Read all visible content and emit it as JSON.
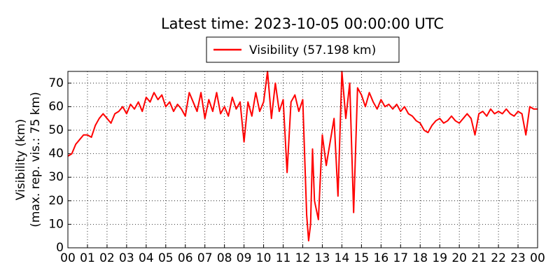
{
  "chart_data": {
    "type": "line",
    "title": "Latest time: 2023-10-05 00:00:00 UTC",
    "y_label": [
      "Visibility (km)",
      "(max. rep. vis.: 75 km)"
    ],
    "x": [
      0,
      0.2,
      0.4,
      0.6,
      0.8,
      1,
      1.2,
      1.4,
      1.6,
      1.8,
      2,
      2.2,
      2.4,
      2.6,
      2.8,
      3,
      3.2,
      3.4,
      3.6,
      3.8,
      4,
      4.2,
      4.4,
      4.6,
      4.8,
      5,
      5.2,
      5.4,
      5.6,
      5.8,
      6,
      6.2,
      6.4,
      6.6,
      6.8,
      7,
      7.2,
      7.4,
      7.6,
      7.8,
      8,
      8.2,
      8.4,
      8.6,
      8.8,
      9,
      9.2,
      9.4,
      9.6,
      9.8,
      10,
      10.2,
      10.4,
      10.6,
      10.8,
      11,
      11.2,
      11.4,
      11.6,
      11.8,
      12,
      12.2,
      12.3,
      12.4,
      12.5,
      12.6,
      12.8,
      13,
      13.2,
      13.4,
      13.6,
      13.8,
      14,
      14.2,
      14.4,
      14.6,
      14.8,
      15,
      15.2,
      15.4,
      15.6,
      15.8,
      16,
      16.2,
      16.4,
      16.6,
      16.8,
      17,
      17.2,
      17.4,
      17.6,
      17.8,
      18,
      18.2,
      18.4,
      18.6,
      18.8,
      19,
      19.2,
      19.4,
      19.6,
      19.8,
      20,
      20.2,
      20.4,
      20.6,
      20.8,
      21,
      21.2,
      21.4,
      21.6,
      21.8,
      22,
      22.2,
      22.4,
      22.6,
      22.8,
      23,
      23.2,
      23.4,
      23.6,
      23.8,
      24
    ],
    "series": [
      {
        "name": "Visibility (57.198 km)",
        "color": "#ff0000",
        "values": [
          39,
          40,
          44,
          46,
          48,
          48,
          47,
          52,
          55,
          57,
          55,
          53,
          57,
          58,
          60,
          57,
          61,
          59,
          62,
          58,
          64,
          62,
          66,
          63,
          65,
          60,
          62,
          58,
          61,
          59,
          56,
          66,
          62,
          58,
          66,
          55,
          63,
          58,
          66,
          57,
          60,
          56,
          64,
          59,
          62,
          45,
          62,
          56,
          66,
          58,
          62,
          75,
          55,
          70,
          58,
          63,
          32,
          62,
          65,
          58,
          63,
          14,
          3,
          10,
          42,
          20,
          12,
          48,
          35,
          45,
          55,
          22,
          75,
          55,
          70,
          15,
          68,
          65,
          60,
          66,
          62,
          59,
          63,
          60,
          61,
          59,
          61,
          58,
          60,
          57,
          56,
          54,
          53,
          50,
          49,
          52,
          54,
          55,
          53,
          54,
          56,
          54,
          53,
          55,
          57,
          55,
          48,
          57,
          58,
          56,
          59,
          57,
          58,
          57,
          59,
          57,
          56,
          58,
          57,
          48,
          60,
          59,
          59
        ]
      }
    ],
    "xlim": [
      0,
      24
    ],
    "xticks": [
      {
        "value": 0,
        "label": "00"
      },
      {
        "value": 1,
        "label": "01"
      },
      {
        "value": 2,
        "label": "02"
      },
      {
        "value": 3,
        "label": "03"
      },
      {
        "value": 4,
        "label": "04"
      },
      {
        "value": 5,
        "label": "05"
      },
      {
        "value": 6,
        "label": "06"
      },
      {
        "value": 7,
        "label": "07"
      },
      {
        "value": 8,
        "label": "08"
      },
      {
        "value": 9,
        "label": "09"
      },
      {
        "value": 10,
        "label": "10"
      },
      {
        "value": 11,
        "label": "11"
      },
      {
        "value": 12,
        "label": "12"
      },
      {
        "value": 13,
        "label": "13"
      },
      {
        "value": 14,
        "label": "14"
      },
      {
        "value": 15,
        "label": "15"
      },
      {
        "value": 16,
        "label": "16"
      },
      {
        "value": 17,
        "label": "17"
      },
      {
        "value": 18,
        "label": "18"
      },
      {
        "value": 19,
        "label": "19"
      },
      {
        "value": 20,
        "label": "20"
      },
      {
        "value": 21,
        "label": "21"
      },
      {
        "value": 22,
        "label": "22"
      },
      {
        "value": 23,
        "label": "23"
      },
      {
        "value": 24,
        "label": "00"
      }
    ],
    "ylim": [
      0,
      75
    ],
    "yticks": [
      0,
      10,
      20,
      30,
      40,
      50,
      60,
      70
    ],
    "grid": true
  }
}
